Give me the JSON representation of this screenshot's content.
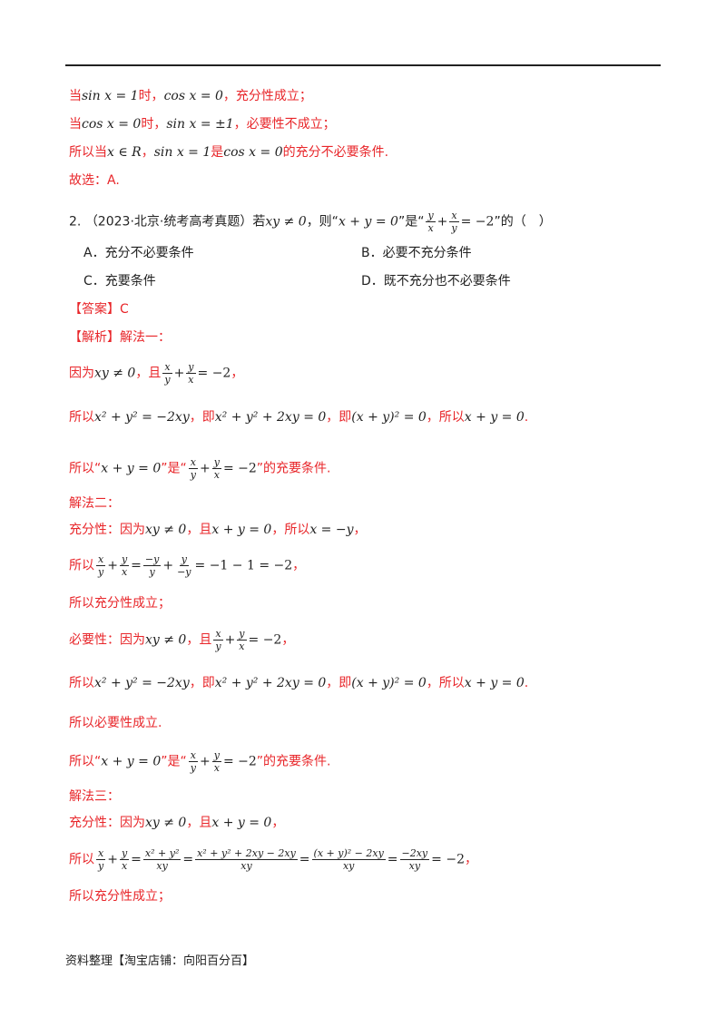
{
  "lines": {
    "l1": {
      "a": "当",
      "m1": "sin x = 1",
      "b": "时，",
      "m2": "cos x = 0",
      "c": "，充分性成立；"
    },
    "l2": {
      "a": "当",
      "m1": "cos x = 0",
      "b": "时，",
      "m2": "sin x = ±1",
      "c": "，必要性不成立；"
    },
    "l3": {
      "a": "所以当",
      "m1": "x ∈ R",
      "b": "，",
      "m2": "sin x = 1",
      "c": "是",
      "m3": "cos x = 0",
      "d": "的充分不必要条件."
    },
    "l4": {
      "a": "故选：A."
    }
  },
  "question": {
    "number": "2.",
    "source": "（2023·北京·统考高考真题）若",
    "m1": "xy ≠ 0",
    "t1": "，则“",
    "m2": "x + y = 0",
    "t2": "”是“",
    "f1n": "y",
    "f1d": "x",
    "plus": "+",
    "f2n": "x",
    "f2d": "y",
    "eq": "= −2",
    "t3": "”的（　）",
    "options": {
      "A": "A．充分不必要条件",
      "B": "B．必要不充分条件",
      "C": "C．充要条件",
      "D": "D．既不充分也不必要条件"
    }
  },
  "answer": {
    "label": "【答案】",
    "value": "C"
  },
  "analysis": {
    "label": "【解析】",
    "method1": "解法一：",
    "s1": {
      "a": "因为",
      "m1": "xy ≠ 0",
      "b": "，且",
      "fxn": "x",
      "fxd": "y",
      "pl": "+",
      "fyn": "y",
      "fyd": "x",
      "eq": "= −2",
      "c": "，"
    },
    "s2": {
      "a": "所以",
      "m1": "x² + y² = −2xy",
      "b": "，即",
      "m2": "x² + y² + 2xy = 0",
      "c": "，即",
      "m3": "(x + y)² = 0",
      "d": "，所以",
      "m4": "x + y = 0",
      "e": "."
    },
    "s3": {
      "a": "所以“",
      "m1": "x + y = 0",
      "b": "”是“",
      "fxn": "x",
      "fxd": "y",
      "pl": "+",
      "fyn": "y",
      "fyd": "x",
      "eq": "= −2",
      "c": "”的充要条件."
    },
    "method2": "解法二：",
    "s4": {
      "a": "充分性：因为",
      "m1": "xy ≠ 0",
      "b": "，且",
      "m2": "x + y = 0",
      "c": "，所以",
      "m3": "x = −y",
      "d": "，"
    },
    "s5": {
      "a": "所以",
      "f1n": "x",
      "f1d": "y",
      "pl": "+",
      "f2n": "y",
      "f2d": "x",
      "eq1": "=",
      "f3n": "−y",
      "f3d": "y",
      "pl2": "+",
      "f4n": "y",
      "f4d": "−y",
      "eq2": "= −1 − 1 = −2",
      "b": "，"
    },
    "s6": "所以充分性成立；",
    "s7": {
      "a": "必要性：因为",
      "m1": "xy ≠ 0",
      "b": "，且",
      "fxn": "x",
      "fxd": "y",
      "pl": "+",
      "fyn": "y",
      "fyd": "x",
      "eq": "= −2",
      "c": "，"
    },
    "s8": {
      "a": "所以",
      "m1": "x² + y² = −2xy",
      "b": "，即",
      "m2": "x² + y² + 2xy = 0",
      "c": "，即",
      "m3": "(x + y)² = 0",
      "d": "，所以",
      "m4": "x + y = 0",
      "e": "."
    },
    "s9": "所以必要性成立.",
    "s10": {
      "a": "所以“",
      "m1": "x + y = 0",
      "b": "”是“",
      "fxn": "x",
      "fxd": "y",
      "pl": "+",
      "fyn": "y",
      "fyd": "x",
      "eq": "= −2",
      "c": "”的充要条件."
    },
    "method3": "解法三：",
    "s11": {
      "a": "充分性：因为",
      "m1": "xy ≠ 0",
      "b": "，且",
      "m2": "x + y = 0",
      "c": "，"
    },
    "s12": {
      "a": "所以",
      "f1n": "x",
      "f1d": "y",
      "pl": "+",
      "f2n": "y",
      "f2d": "x",
      "eq1": "=",
      "f3n": "x² + y²",
      "f3d": "xy",
      "eq2": "=",
      "f4n": "x² + y² + 2xy − 2xy",
      "f4d": "xy",
      "eq3": "=",
      "f5n": "(x + y)² − 2xy",
      "f5d": "xy",
      "eq4": "=",
      "f6n": "−2xy",
      "f6d": "xy",
      "eq5": "= −2",
      "b": "，"
    },
    "s13": "所以充分性成立；"
  },
  "footer": "资料整理【淘宝店铺：向阳百分百】"
}
